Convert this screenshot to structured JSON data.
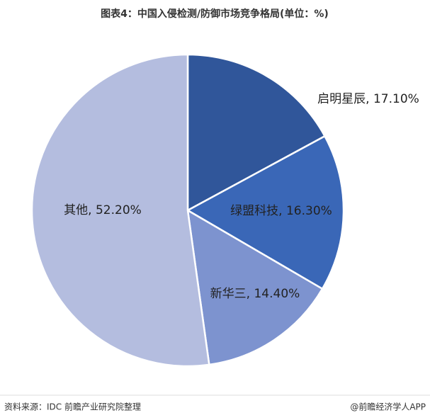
{
  "chart_data": {
    "type": "pie",
    "title": "图表4：中国入侵检测/防御市场竞争格局(单位：%)",
    "values": [
      17.1,
      16.3,
      14.4,
      52.2
    ],
    "value_labels": [
      "启明星辰, 17.10%",
      "绿盟科技, 16.30%",
      "新华三, 14.40%",
      "其他, 52.20%"
    ],
    "colors": [
      "#30569a",
      "#3a67b7",
      "#7d93cf",
      "#b4bddf"
    ],
    "source": "资料来源：IDC 前瞻产业研究院整理",
    "credit": "@前瞻经济学人APP"
  }
}
